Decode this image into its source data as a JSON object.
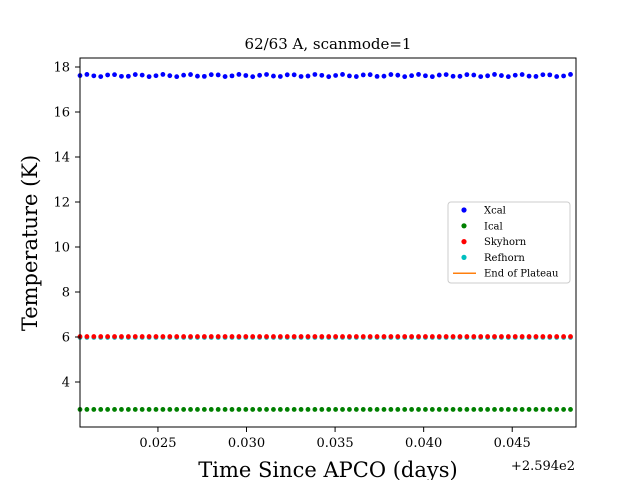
{
  "chart_data": {
    "type": "scatter",
    "title": "62/63 A, scanmode=1",
    "xlabel": "Time Since APCO (days)",
    "ylabel": "Temperature (K)",
    "x_offset_label": "+2.594e2",
    "xlim": [
      0.0206,
      0.0486
    ],
    "ylim": [
      2.0,
      18.4
    ],
    "x_ticks": [
      0.025,
      0.03,
      0.035,
      0.04,
      0.045
    ],
    "x_tick_labels": [
      "0.025",
      "0.030",
      "0.035",
      "0.040",
      "0.045"
    ],
    "y_ticks": [
      4,
      6,
      8,
      10,
      12,
      14,
      16,
      18
    ],
    "y_tick_labels": [
      "4",
      "6",
      "8",
      "10",
      "12",
      "14",
      "16",
      "18"
    ],
    "grid": false,
    "legend_position": "center-right",
    "x_start": 0.0206,
    "x_step": 0.00039,
    "n_points": 72,
    "series": [
      {
        "name": "Xcal",
        "color": "#0000ff",
        "kind": "points",
        "value": 17.62,
        "jitter": 0.05
      },
      {
        "name": "Ical",
        "color": "#008000",
        "kind": "points",
        "value": 2.78,
        "jitter": 0.0
      },
      {
        "name": "Skyhorn",
        "color": "#ff0000",
        "kind": "points",
        "value": 6.02,
        "jitter": 0.0
      },
      {
        "name": "Refhorn",
        "color": "#00bfbf",
        "kind": "points",
        "value": 5.98,
        "jitter": 0.0
      },
      {
        "name": "End of Plateau",
        "color": "#ff7f0e",
        "kind": "line"
      }
    ]
  }
}
